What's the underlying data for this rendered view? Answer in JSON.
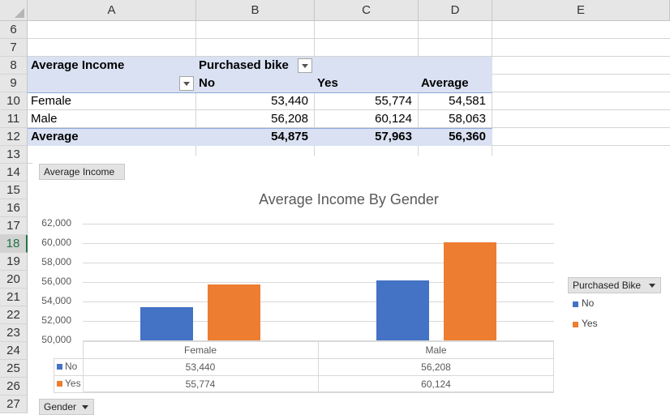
{
  "columns": [
    "A",
    "B",
    "C",
    "D",
    "E"
  ],
  "rows": [
    "6",
    "7",
    "8",
    "9",
    "10",
    "11",
    "12",
    "13",
    "14",
    "15",
    "16",
    "17",
    "18",
    "19",
    "20",
    "21",
    "22",
    "23",
    "24",
    "25",
    "26",
    "27"
  ],
  "pivot": {
    "value_field": "Average Income",
    "column_field": "Purchased bike",
    "col_headers": [
      "No",
      "Yes",
      "Average"
    ],
    "rows": [
      {
        "label": "Female",
        "values": [
          "53,440",
          "55,774",
          "54,581"
        ]
      },
      {
        "label": "Male",
        "values": [
          "56,208",
          "60,124",
          "58,063"
        ]
      }
    ],
    "total": {
      "label": "Average",
      "values": [
        "54,875",
        "57,963",
        "56,360"
      ]
    }
  },
  "chart_buttons": {
    "value": "Average Income",
    "legend_field": "Purchased Bike",
    "axis_field": "Gender"
  },
  "colors": {
    "no": "#4472c4",
    "yes": "#ed7d31",
    "pivot_band": "#d9e1f2"
  },
  "chart_data": {
    "type": "bar",
    "title": "Average Income By Gender",
    "categories": [
      "Female",
      "Male"
    ],
    "series": [
      {
        "name": "No",
        "values": [
          53440,
          56208
        ]
      },
      {
        "name": "Yes",
        "values": [
          55774,
          60124
        ]
      }
    ],
    "ylim": [
      50000,
      62000
    ],
    "yticks": [
      "50,000",
      "52,000",
      "54,000",
      "56,000",
      "58,000",
      "60,000",
      "62,000"
    ],
    "data_table": {
      "rows": [
        {
          "name": "No",
          "values": [
            "53,440",
            "56,208"
          ]
        },
        {
          "name": "Yes",
          "values": [
            "55,774",
            "60,124"
          ]
        }
      ]
    },
    "legend_position": "right",
    "grid": true
  }
}
